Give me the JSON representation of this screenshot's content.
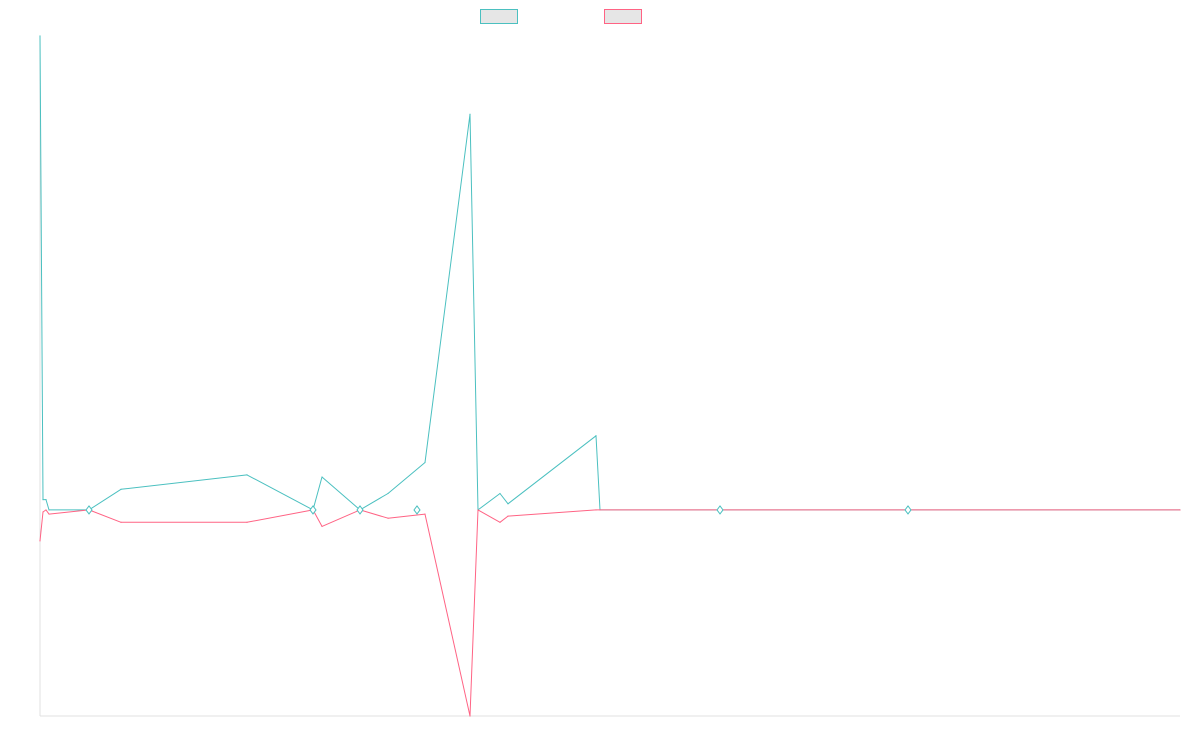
{
  "chart_data": {
    "type": "line",
    "title": "",
    "xlabel": "",
    "ylabel": "",
    "xlim": [
      0,
      1140
    ],
    "ylim": [
      -100,
      230
    ],
    "grid": false,
    "legend_position": "top-center",
    "series": [
      {
        "color": "#4bc0c0",
        "fill": "#e6e6e6",
        "points": [
          [
            0,
            230
          ],
          [
            3,
            5
          ],
          [
            6,
            5
          ],
          [
            9,
            0
          ],
          [
            49,
            0
          ],
          [
            81,
            10
          ],
          [
            207,
            17
          ],
          [
            273,
            0
          ],
          [
            282,
            16
          ],
          [
            320,
            0
          ],
          [
            348,
            8
          ],
          [
            385,
            23
          ],
          [
            430,
            192
          ],
          [
            438,
            0
          ],
          [
            460,
            8
          ],
          [
            468,
            3
          ],
          [
            556,
            36
          ],
          [
            560,
            0
          ],
          [
            680,
            0
          ],
          [
            868,
            0
          ],
          [
            1140,
            0
          ]
        ]
      },
      {
        "color": "#ff6384",
        "fill": "#e6e6e6",
        "points": [
          [
            0,
            -15
          ],
          [
            3,
            -1
          ],
          [
            6,
            0
          ],
          [
            9,
            -2
          ],
          [
            49,
            0
          ],
          [
            81,
            -6
          ],
          [
            207,
            -6
          ],
          [
            273,
            0
          ],
          [
            282,
            -8
          ],
          [
            320,
            0
          ],
          [
            348,
            -4
          ],
          [
            385,
            -2
          ],
          [
            430,
            -100
          ],
          [
            438,
            0
          ],
          [
            460,
            -6
          ],
          [
            468,
            -3
          ],
          [
            556,
            0
          ],
          [
            560,
            0
          ],
          [
            680,
            0
          ],
          [
            868,
            0
          ],
          [
            1140,
            0
          ]
        ]
      }
    ],
    "markers": [
      {
        "x": 49,
        "y": 0
      },
      {
        "x": 273,
        "y": 0
      },
      {
        "x": 320,
        "y": 0
      },
      {
        "x": 377,
        "y": 0
      },
      {
        "x": 680,
        "y": 0
      },
      {
        "x": 868,
        "y": 0
      }
    ]
  }
}
